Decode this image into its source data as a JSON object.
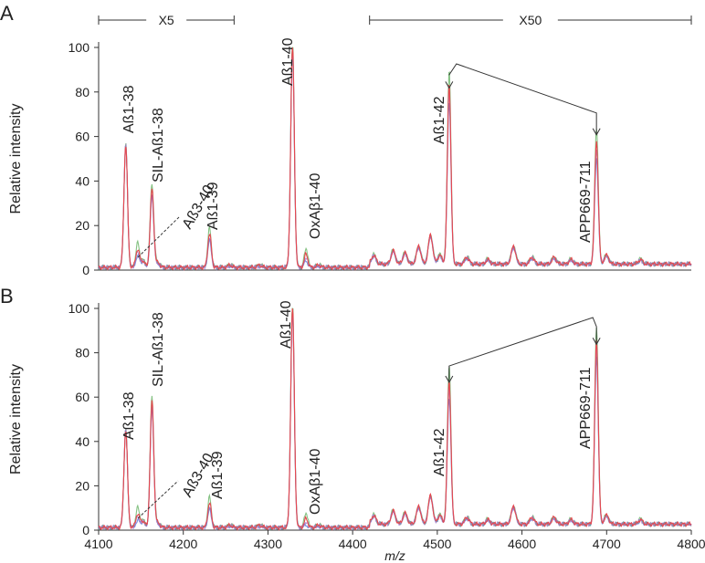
{
  "chart_data": [
    {
      "type": "line",
      "panel_label": "A",
      "xlabel": "",
      "ylabel": "Relative intensity",
      "xlim": [
        4100,
        4800
      ],
      "ylim": [
        0,
        100
      ],
      "yticks": [
        0,
        20,
        40,
        60,
        80,
        100
      ],
      "scale_bars": [
        {
          "label": "X5",
          "x_start": 4100,
          "x_end": 4260
        },
        {
          "label": "X50",
          "x_start": 4420,
          "x_end": 4800
        }
      ],
      "peaks": [
        {
          "label": "Aß1-38",
          "mz": 4132,
          "intensity": 55
        },
        {
          "label": "Aß3-40",
          "mz": 4146,
          "intensity": 8
        },
        {
          "label": "SIL-Aß1-38",
          "mz": 4163,
          "intensity": 35
        },
        {
          "label": "Aß1-39",
          "mz": 4231,
          "intensity": 15
        },
        {
          "label": "Aß1-40",
          "mz": 4329,
          "intensity": 100
        },
        {
          "label": "OxAβ1-40",
          "mz": 4345,
          "intensity": 6
        },
        {
          "label": "Aß1-42",
          "mz": 4514,
          "intensity": 81
        },
        {
          "label": "APP669-711",
          "mz": 4688,
          "intensity": 55
        }
      ],
      "series": [
        {
          "name": "",
          "color": "#e8464e"
        },
        {
          "name": "",
          "color": "#4a6fd8"
        },
        {
          "name": "",
          "color": "#5cae5a"
        },
        {
          "name": "",
          "color": "#a070c8"
        }
      ]
    },
    {
      "type": "line",
      "panel_label": "B",
      "xlabel": "m/z",
      "ylabel": "Relative intensity",
      "xlim": [
        4100,
        4800
      ],
      "ylim": [
        0,
        100
      ],
      "xticks": [
        4100,
        4200,
        4300,
        4400,
        4500,
        4600,
        4700,
        4800
      ],
      "yticks": [
        0,
        20,
        40,
        60,
        80,
        100
      ],
      "peaks": [
        {
          "label": "Aß1-38",
          "mz": 4132,
          "intensity": 44
        },
        {
          "label": "Aß3-40",
          "mz": 4146,
          "intensity": 6
        },
        {
          "label": "SIL-Aß1-38",
          "mz": 4163,
          "intensity": 57
        },
        {
          "label": "Aß1-39",
          "mz": 4231,
          "intensity": 11
        },
        {
          "label": "Aß1-40",
          "mz": 4329,
          "intensity": 100
        },
        {
          "label": "OxAβ1-40",
          "mz": 4345,
          "intensity": 4
        },
        {
          "label": "Aß1-42",
          "mz": 4514,
          "intensity": 65
        },
        {
          "label": "APP669-711",
          "mz": 4688,
          "intensity": 83
        }
      ],
      "series": [
        {
          "name": "",
          "color": "#e8464e"
        },
        {
          "name": "",
          "color": "#4a6fd8"
        },
        {
          "name": "",
          "color": "#5cae5a"
        },
        {
          "name": "",
          "color": "#a070c8"
        }
      ]
    }
  ]
}
